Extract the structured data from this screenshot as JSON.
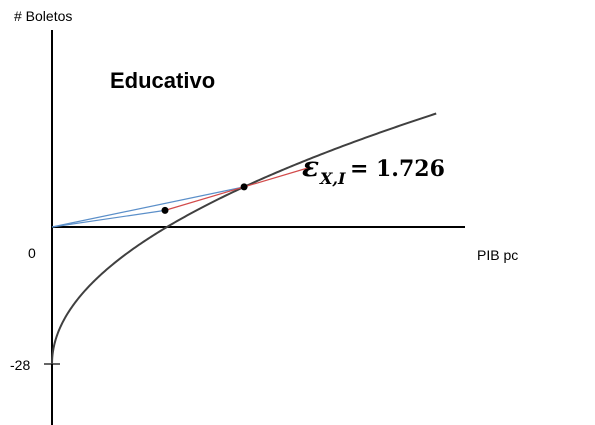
{
  "chart_data": {
    "type": "line",
    "title": "Educativo",
    "ylabel": "# Boletos",
    "xlabel": "PIB pc",
    "y_ticks": [
      "0",
      "-28"
    ],
    "annotation": {
      "symbol": "ε",
      "subscript": "X,I",
      "equals": "=",
      "value": "1.726"
    },
    "curve": {
      "description": "concave increasing curve starting at y = -28",
      "color": "#404040"
    },
    "points": [
      {
        "x": 1.0,
        "y": 3.4
      },
      {
        "x": 1.7,
        "y": 8.2
      }
    ],
    "lines": {
      "rays_from_origin_color": "#5b8fc9",
      "tangent_color": "#d24b4b"
    },
    "y_min": -28
  }
}
